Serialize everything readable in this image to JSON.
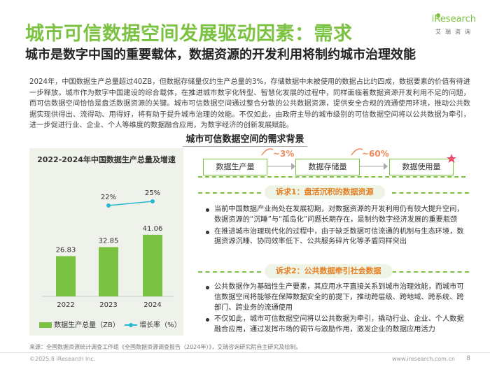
{
  "header": {
    "title": "城市可信数据空间发展驱动因素：需求",
    "subtitle": "城市是数字中国的重要载体，数据资源的开发利用将制约城市治理效能",
    "logo_text": "iResearch",
    "logo_sub": "艾瑞咨询"
  },
  "intro": "2024年，中国数据生产总量超过40ZB，但数据存储量仅约生产总量的3%，存储数据中未被使用的数据占比约四成，数据要素的价值有待进一步释放。城市作为数字中国建设的综合载体，在推进城市数字化转型、智慧化发展的过程中，同样面临着数据资源开发利用不足的问题，而可信数据空间恰恰是盘活数据资源的关键。城市可信数据空间通过整合分散的公共数据资源，提供安全合规的流通使用环境，推动公共数据实现供得出、流得动、用得好，将有助于提升城市治理的效能。不仅如此，由政府主导的城市级别的可信数据空间将以公共数据为牵引，进一步促进行业、企业、个人等维度的数据融合应用，为数字经济的创新发展赋能。",
  "section_title": "城市可信数据空间的需求背景",
  "chart_data": {
    "type": "bar",
    "title": "2022-2024年中国数据生产总量及增速",
    "categories": [
      "2022",
      "2023",
      "2024"
    ],
    "series": [
      {
        "name": "数据生产总量（ZB）",
        "values": [
          26.83,
          32.85,
          41.06
        ],
        "color": "#7cc242"
      },
      {
        "name": "增长率（%）",
        "values": [
          null,
          22,
          25
        ],
        "labels": [
          "",
          "22%",
          "25%"
        ],
        "color": "#2ab7d4",
        "type": "line"
      }
    ],
    "xlabel": "",
    "ylabel": "",
    "ylim": [
      0,
      45
    ],
    "legend": "bottom"
  },
  "flow": {
    "boxes": [
      "数据生产量",
      "数据存储量",
      "数据使用量"
    ],
    "pcts": [
      "~3%",
      "~60%"
    ]
  },
  "needs": [
    {
      "label": "诉求1：盘活沉积的数据资源",
      "bullets": [
        "当前中国数据产业尚处在发展初期，对数据资源的开发利用仍有较大提升空间，数据资源的“沉睡”与“孤岛化”问题长期存在，是制约数字经济发展的重要瓶颈",
        "在推进城市治理现代化的过程中，由于缺乏数据可信流通的机制与生态环境，数据资源沉睡、协同效率低下、公共服务碎片化等矛盾同样突出"
      ]
    },
    {
      "label": "诉求2：公共数据牵引社会数据",
      "bullets": [
        "公共数据作为基础性生产要素，其应用水平直接关系到城市治理效能，而城市可信数据空间将能够在保障数据安全的前提下，推动跨层级、跨地域、跨系统、跨部门、跨业务的流通使用",
        "不仅如此，城市可信数据空间将以公共数据为牵引，撬动行业、企业、个人数据融合应用，通过发挥市场的调节与激励作用，激发企业的数据应用活力"
      ]
    }
  ],
  "footer": {
    "source": "来源：全国数据资源统计调查工作组《全国数据资源调查报告（2024年）》，艾瑞咨询研究院自主研究及绘制。",
    "copyright": "©2025.8 iResearch Inc.",
    "url": "www.iresearch.com.cn",
    "page": "8"
  }
}
